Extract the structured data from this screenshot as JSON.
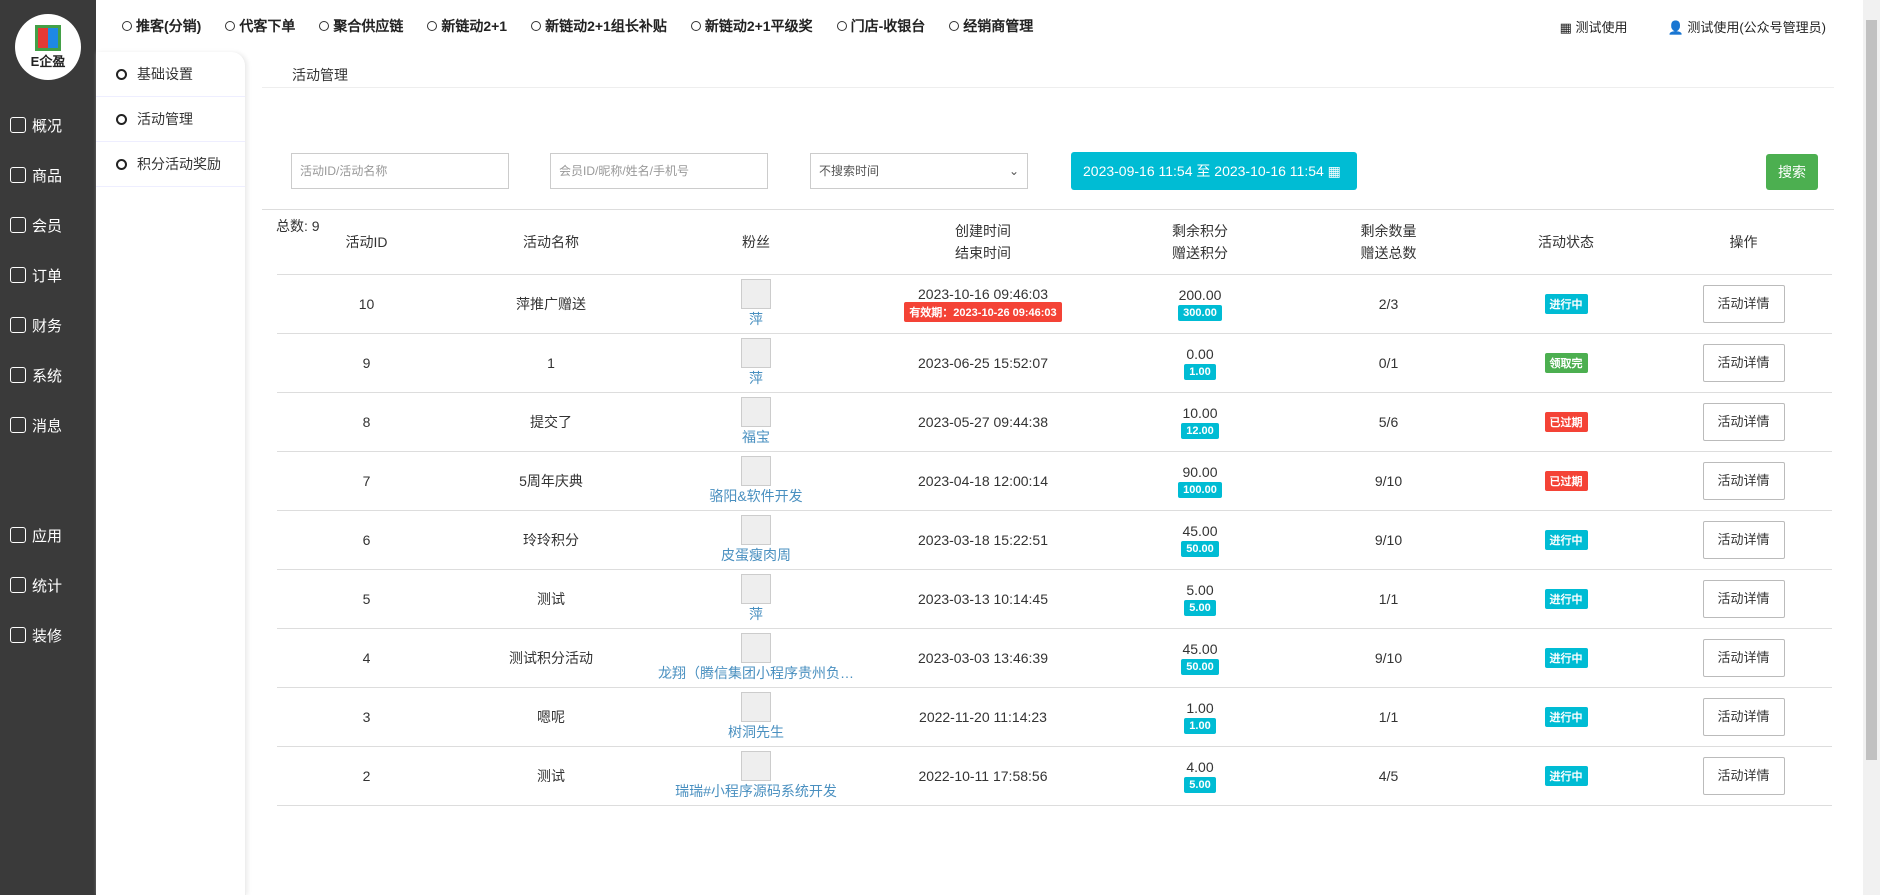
{
  "logo": "E企盈",
  "sidebar": [
    {
      "label": "概况",
      "icon": "chart-icon"
    },
    {
      "label": "商品",
      "icon": "goods-icon"
    },
    {
      "label": "会员",
      "icon": "users-icon"
    },
    {
      "label": "订单",
      "icon": "cart-icon"
    },
    {
      "label": "财务",
      "icon": "finance-icon"
    },
    {
      "label": "系统",
      "icon": "gear-icon"
    },
    {
      "label": "消息",
      "icon": "message-icon"
    },
    {
      "label": "应用",
      "icon": "apps-icon"
    },
    {
      "label": "统计",
      "icon": "stats-icon"
    },
    {
      "label": "装修",
      "icon": "brush-icon"
    }
  ],
  "topnav": [
    "推客(分销)",
    "代客下单",
    "聚合供应链",
    "新链动2+1",
    "新链动2+1组长补贴",
    "新链动2+1平级奖",
    "门店-收银台",
    "经销商管理"
  ],
  "top_right": [
    "测试使用",
    "测试使用(公众号管理员)"
  ],
  "submenu": [
    "基础设置",
    "活动管理",
    "积分活动奖励"
  ],
  "breadcrumb": "活动管理",
  "filters": {
    "activity_placeholder": "活动ID/活动名称",
    "member_placeholder": "会员ID/昵称/姓名/手机号",
    "time_select": "不搜索时间",
    "date_range": "2023-09-16 11:54 至 2023-10-16 11:54",
    "search": "搜索"
  },
  "total_label": "总数:",
  "total": "9",
  "headers": [
    "活动ID",
    "活动名称",
    "粉丝",
    "创建时间",
    "结束时间",
    "剩余积分",
    "赠送积分",
    "剩余数量",
    "赠送总数",
    "活动状态",
    "操作"
  ],
  "colors": {
    "ongoing": "#00bcd4",
    "finished": "#4caf50",
    "expired": "#f44336"
  },
  "rows": [
    {
      "id": "10",
      "name": "萍推广赠送",
      "fan": "萍",
      "created": "2023-10-16 09:46:03",
      "validity": "有效期：2023-10-26 09:46:03",
      "remain": "200.00",
      "gift": "300.00",
      "qty": "2/3",
      "status": "进行中",
      "st": "ongoing",
      "action": "活动详情"
    },
    {
      "id": "9",
      "name": "1",
      "fan": "萍",
      "created": "2023-06-25 15:52:07",
      "remain": "0.00",
      "gift": "1.00",
      "qty": "0/1",
      "status": "领取完",
      "st": "finished",
      "action": "活动详情"
    },
    {
      "id": "8",
      "name": "提交了",
      "fan": "福宝",
      "created": "2023-05-27 09:44:38",
      "remain": "10.00",
      "gift": "12.00",
      "qty": "5/6",
      "status": "已过期",
      "st": "expired",
      "action": "活动详情"
    },
    {
      "id": "7",
      "name": "5周年庆典",
      "fan": "骆阳&软件开发",
      "created": "2023-04-18 12:00:14",
      "remain": "90.00",
      "gift": "100.00",
      "qty": "9/10",
      "status": "已过期",
      "st": "expired",
      "action": "活动详情"
    },
    {
      "id": "6",
      "name": "玲玲积分",
      "fan": "皮蛋瘦肉周",
      "created": "2023-03-18 15:22:51",
      "remain": "45.00",
      "gift": "50.00",
      "qty": "9/10",
      "status": "进行中",
      "st": "ongoing",
      "action": "活动详情"
    },
    {
      "id": "5",
      "name": "测试",
      "fan": "萍",
      "created": "2023-03-13 10:14:45",
      "remain": "5.00",
      "gift": "5.00",
      "qty": "1/1",
      "status": "进行中",
      "st": "ongoing",
      "action": "活动详情"
    },
    {
      "id": "4",
      "name": "测试积分活动",
      "fan": "龙翔（腾信集团小程序贵州负…",
      "created": "2023-03-03 13:46:39",
      "remain": "45.00",
      "gift": "50.00",
      "qty": "9/10",
      "status": "进行中",
      "st": "ongoing",
      "action": "活动详情"
    },
    {
      "id": "3",
      "name": "嗯呢",
      "fan": "树洞先生",
      "created": "2022-11-20 11:14:23",
      "remain": "1.00",
      "gift": "1.00",
      "qty": "1/1",
      "status": "进行中",
      "st": "ongoing",
      "action": "活动详情"
    },
    {
      "id": "2",
      "name": "测试",
      "fan": "瑞瑞#小程序源码系统开发",
      "created": "2022-10-11 17:58:56",
      "remain": "4.00",
      "gift": "5.00",
      "qty": "4/5",
      "status": "进行中",
      "st": "ongoing",
      "action": "活动详情"
    }
  ]
}
